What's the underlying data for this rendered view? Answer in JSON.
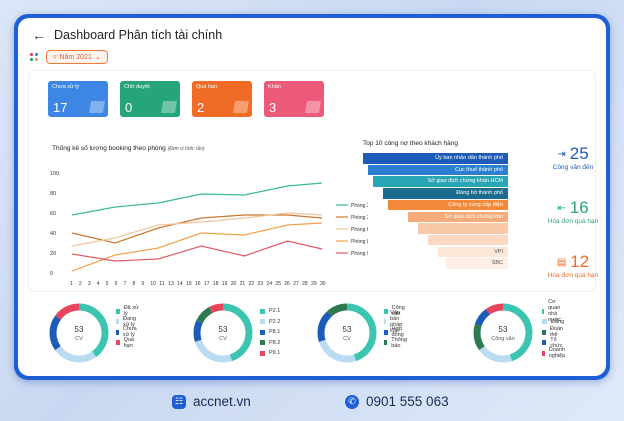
{
  "header": {
    "title": "Dashboard Phân tích tài chính",
    "back_icon": "arrow-left-icon"
  },
  "filter": {
    "label": "Năm 2021"
  },
  "status_cards": [
    {
      "label": "Chưa xử lý",
      "value": "17",
      "color": "#3d86e3"
    },
    {
      "label": "Chờ duyệt",
      "value": "0",
      "color": "#27a57a"
    },
    {
      "label": "Quá hạn",
      "value": "2",
      "color": "#f06b25"
    },
    {
      "label": "Khẩn",
      "value": "3",
      "color": "#ec5a7a"
    }
  ],
  "line_chart": {
    "title": "Thống kê số lượng booking theo phòng",
    "unit": "(Đơn vị tính: lần)"
  },
  "chart_data": {
    "type": "line",
    "x": [
      1,
      2,
      3,
      4,
      5,
      6,
      7,
      8,
      9,
      10,
      11,
      12,
      13,
      14,
      15,
      16,
      17,
      18,
      19,
      20,
      21,
      22,
      23,
      24,
      25,
      26,
      27,
      28,
      29,
      30
    ],
    "x_ticks": [
      "1",
      "2",
      "3",
      "4",
      "5",
      "6",
      "7",
      "8",
      "9",
      "10",
      "11",
      "13",
      "14",
      "15",
      "16",
      "17",
      "18",
      "19",
      "20",
      "21",
      "22",
      "23",
      "24",
      "25",
      "26",
      "27",
      "28",
      "29",
      "30"
    ],
    "ylim": [
      0,
      100
    ],
    "y_ticks": [
      "100",
      "80",
      "60",
      "40",
      "20",
      "0"
    ],
    "series": [
      {
        "name": "Phòng 2.1",
        "color": "#3bb89a",
        "points": [
          [
            1,
            58
          ],
          [
            6,
            66
          ],
          [
            11,
            70
          ],
          [
            16,
            79
          ],
          [
            21,
            78
          ],
          [
            26,
            87
          ],
          [
            30,
            90
          ]
        ]
      },
      {
        "name": "Phòng 2.2",
        "color": "#c9772e",
        "points": [
          [
            1,
            40
          ],
          [
            6,
            30
          ],
          [
            11,
            45
          ],
          [
            16,
            55
          ],
          [
            21,
            58
          ],
          [
            26,
            58
          ],
          [
            30,
            55
          ]
        ]
      },
      {
        "name": "Phòng 8.1",
        "color": "#f0c69a",
        "points": [
          [
            1,
            27
          ],
          [
            6,
            35
          ],
          [
            11,
            48
          ],
          [
            16,
            51
          ],
          [
            21,
            55
          ],
          [
            26,
            60
          ],
          [
            30,
            58
          ]
        ]
      },
      {
        "name": "Phòng 8.2",
        "color": "#f2a14c",
        "points": [
          [
            1,
            2
          ],
          [
            6,
            18
          ],
          [
            11,
            25
          ],
          [
            16,
            40
          ],
          [
            21,
            38
          ],
          [
            26,
            48
          ],
          [
            30,
            50
          ]
        ]
      },
      {
        "name": "Phòng 9.1",
        "color": "#e15a64",
        "points": [
          [
            1,
            19
          ],
          [
            6,
            12
          ],
          [
            11,
            14
          ],
          [
            16,
            27
          ],
          [
            21,
            17
          ],
          [
            26,
            32
          ],
          [
            30,
            24
          ]
        ]
      }
    ]
  },
  "top10": {
    "title": "Top 10 công nợ theo khách hàng",
    "items": [
      {
        "label": "Ủy ban nhân dân thành phố",
        "color": "#1d5bb8"
      },
      {
        "label": "Cục thuế thành phố",
        "color": "#2a7fd0"
      },
      {
        "label": "Sở giao dịch chứng khán HCM",
        "color": "#28a6b5"
      },
      {
        "label": "Đảng bộ thành phố",
        "color": "#1c6c8f"
      },
      {
        "label": "Công ty cung cấp điện",
        "color": "#f28a3a"
      },
      {
        "label": "Sở giao dịch chứng khn",
        "color": "#f6ac7a"
      },
      {
        "label": "",
        "color": "#f9c9a8"
      },
      {
        "label": "",
        "color": "#fbd9c2"
      },
      {
        "label": "VPI",
        "color": "#fde6d8"
      },
      {
        "label": "SBC",
        "color": "#feeee5"
      }
    ]
  },
  "stats": [
    {
      "value": "25",
      "label": "Công văn đến",
      "color": "#1d5bb8",
      "icon": "inbox-arrow-icon"
    },
    {
      "value": "16",
      "label": "Hóa đơn quá hạn",
      "color": "#27a57a",
      "icon": "invoice-arrow-icon"
    },
    {
      "value": "12",
      "label": "Hóa đơn quá hạn",
      "color": "#f06b25",
      "icon": "document-icon"
    }
  ],
  "donuts": [
    {
      "center": "53",
      "sub": "CV",
      "segments": [
        {
          "label": "Đã xử lý",
          "value": 40,
          "color": "#3bc4b0"
        },
        {
          "label": "Đang xử lý",
          "value": 25,
          "color": "#b9dcf2"
        },
        {
          "label": "Chưa xử lý",
          "value": 20,
          "color": "#1d5bb8"
        },
        {
          "label": "Quá hạn",
          "value": 15,
          "color": "#e8455c"
        }
      ]
    },
    {
      "center": "53",
      "sub": "CV",
      "segments": [
        {
          "label": "P2.1",
          "value": 45,
          "color": "#3bc4b0"
        },
        {
          "label": "P2.2",
          "value": 25,
          "color": "#b9dcf2"
        },
        {
          "label": "P8.1",
          "value": 12,
          "color": "#1d5bb8"
        },
        {
          "label": "P8.2",
          "value": 10,
          "color": "#2d7a4f"
        },
        {
          "label": "P9.1",
          "value": 8,
          "color": "#e8455c"
        }
      ]
    },
    {
      "center": "53",
      "sub": "CV",
      "segments": [
        {
          "label": "Công văn",
          "value": 45,
          "color": "#3bc4b0"
        },
        {
          "label": "Văn bản pháp luật",
          "value": 25,
          "color": "#b9dcf2"
        },
        {
          "label": "Hợp đồng",
          "value": 18,
          "color": "#1d5bb8"
        },
        {
          "label": "Thông báo",
          "value": 12,
          "color": "#2d7a4f"
        }
      ]
    },
    {
      "center": "53",
      "sub": "Công văn",
      "segments": [
        {
          "label": "Cơ quan nhà nước",
          "value": 45,
          "color": "#3bc4b0"
        },
        {
          "label": "Đảng",
          "value": 20,
          "color": "#b9dcf2"
        },
        {
          "label": "Đoàn thể",
          "value": 15,
          "color": "#2d7a4f"
        },
        {
          "label": "Tổ chức",
          "value": 10,
          "color": "#1d5bb8"
        },
        {
          "label": "Doanh nghiệp",
          "value": 10,
          "color": "#e8455c"
        }
      ]
    }
  ],
  "footer": {
    "website": "accnet.vn",
    "phone": "0901 555 063"
  }
}
